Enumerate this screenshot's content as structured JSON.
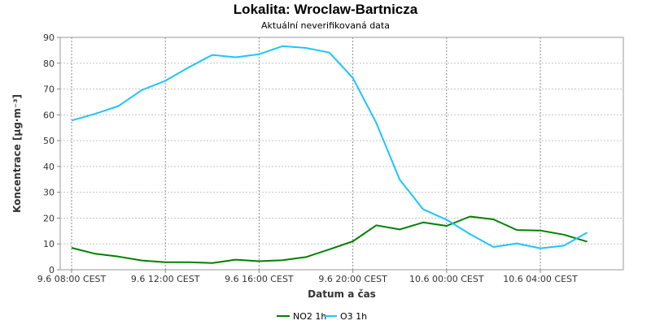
{
  "chart_data": {
    "type": "line",
    "title": "Lokalita: Wroclaw-Bartnicza",
    "subtitle": "Aktuální neverifikovaná data",
    "xlabel": "Datum a čas",
    "ylabel": "Koncentrace [µg·m⁻³]",
    "ylim": [
      0,
      90
    ],
    "yticks": [
      "0",
      "10",
      "20",
      "30",
      "40",
      "50",
      "60",
      "70",
      "80",
      "90"
    ],
    "xtick_labels": [
      "9.6 08:00 CEST",
      "9.6 12:00 CEST",
      "9.6 16:00 CEST",
      "9.6 20:00 CEST",
      "10.6 00:00 CEST",
      "10.6 04:00 CEST"
    ],
    "xtick_hours": [
      0,
      4,
      8,
      12,
      16,
      20
    ],
    "x_hours": [
      0,
      1,
      2,
      3,
      4,
      5,
      6,
      7,
      8,
      9,
      10,
      11,
      12,
      13,
      14,
      15,
      16,
      17,
      18,
      19,
      20,
      21,
      22
    ],
    "grid": true,
    "legend_position": "bottom",
    "series": [
      {
        "name": "NO2 1h",
        "color": "#008000",
        "values": [
          8.5,
          6.2,
          5.1,
          3.6,
          2.9,
          2.9,
          2.6,
          3.9,
          3.3,
          3.7,
          4.9,
          7.9,
          11.0,
          17.2,
          15.6,
          18.3,
          17.0,
          20.6,
          19.5,
          15.4,
          15.2,
          13.6,
          10.9
        ]
      },
      {
        "name": "O3 1h",
        "color": "#1ec4ff",
        "values": [
          57.8,
          60.4,
          63.4,
          69.6,
          73.2,
          78.4,
          83.2,
          82.3,
          83.5,
          86.6,
          85.9,
          84.1,
          74.3,
          56.9,
          34.9,
          23.4,
          19.4,
          13.8,
          8.8,
          10.2,
          8.3,
          9.3,
          14.4
        ]
      }
    ]
  }
}
